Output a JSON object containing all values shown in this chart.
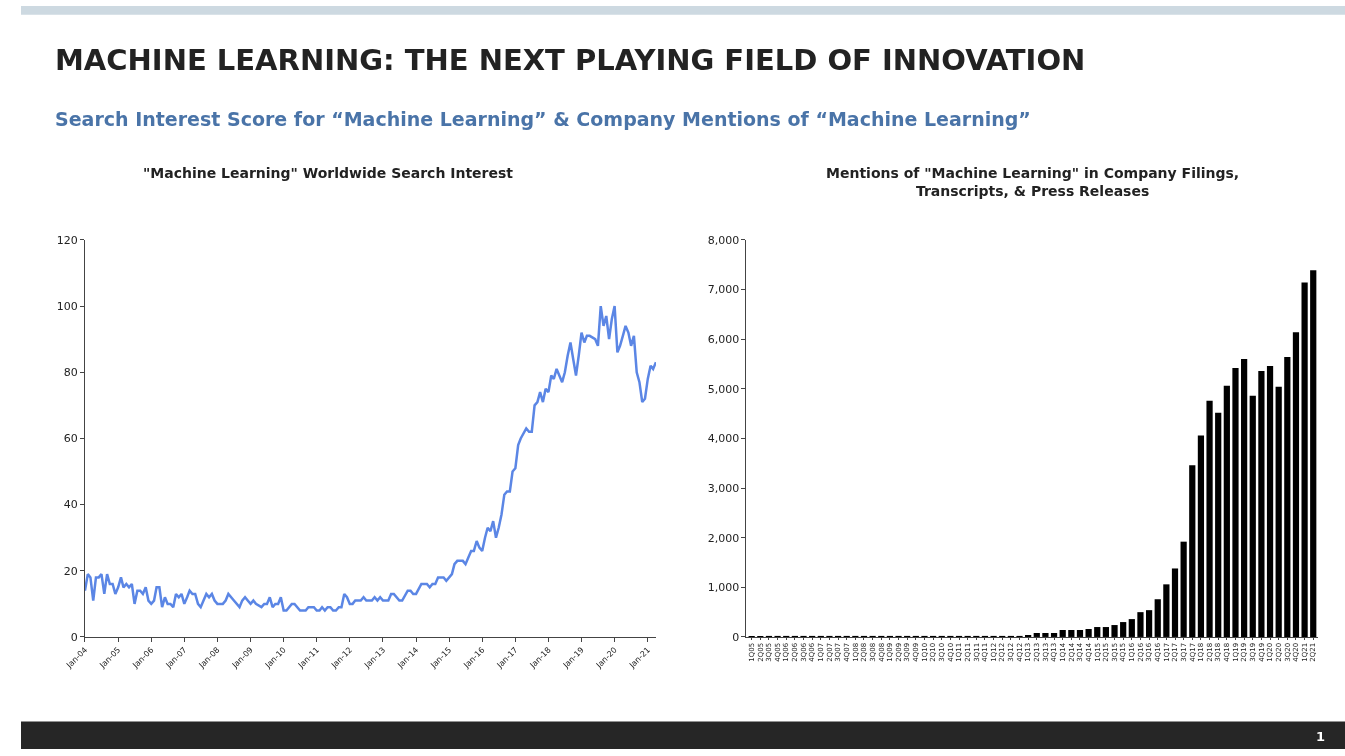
{
  "chart_data": [
    {
      "type": "line",
      "title": "\"Machine Learning\" Worldwide Search Interest",
      "annotations": [
        "MACHINE LEARNING: THE NEXT PLAYING FIELD OF INNOVATION",
        "Search Interest Score for “Machine Learning” & Company Mentions of “Machine Learning”",
        "1"
      ],
      "x": [
        "2004-01",
        "2004-02",
        "2004-03",
        "2004-04",
        "2004-05",
        "2004-06",
        "2004-07",
        "2004-08",
        "2004-09",
        "2004-10",
        "2004-11",
        "2004-12",
        "2005-01",
        "2005-02",
        "2005-03",
        "2005-04",
        "2005-05",
        "2005-06",
        "2005-07",
        "2005-08",
        "2005-09",
        "2005-10",
        "2005-11",
        "2005-12",
        "2006-01",
        "2006-02",
        "2006-03",
        "2006-04",
        "2006-05",
        "2006-06",
        "2006-07",
        "2006-08",
        "2006-09",
        "2006-10",
        "2006-11",
        "2006-12",
        "2007-01",
        "2007-02",
        "2007-03",
        "2007-04",
        "2007-05",
        "2007-06",
        "2007-07",
        "2007-08",
        "2007-09",
        "2007-10",
        "2007-11",
        "2007-12",
        "2008-01",
        "2008-03",
        "2008-04",
        "2008-05",
        "2008-07",
        "2008-09",
        "2008-10",
        "2008-11",
        "2008-12",
        "2009-01",
        "2009-02",
        "2009-03",
        "2009-05",
        "2009-06",
        "2009-07",
        "2009-08",
        "2009-09",
        "2009-10",
        "2009-11",
        "2009-12",
        "2010-01",
        "2010-02",
        "2010-04",
        "2010-05",
        "2010-07",
        "2010-09",
        "2010-10",
        "2010-12",
        "2011-01",
        "2011-02",
        "2011-03",
        "2011-04",
        "2011-05",
        "2011-06",
        "2011-07",
        "2011-08",
        "2011-09",
        "2011-10",
        "2011-11",
        "2011-12",
        "2012-01",
        "2012-02",
        "2012-03",
        "2012-05",
        "2012-06",
        "2012-07",
        "2012-09",
        "2012-10",
        "2012-11",
        "2012-12",
        "2013-01",
        "2013-03",
        "2013-04",
        "2013-05",
        "2013-07",
        "2013-08",
        "2013-10",
        "2013-11",
        "2013-12",
        "2014-01",
        "2014-03",
        "2014-05",
        "2014-06",
        "2014-07",
        "2014-08",
        "2014-09",
        "2014-11",
        "2014-12",
        "2015-02",
        "2015-03",
        "2015-04",
        "2015-06",
        "2015-07",
        "2015-08",
        "2015-09",
        "2015-10",
        "2015-11",
        "2015-12",
        "2016-01",
        "2016-02",
        "2016-03",
        "2016-04",
        "2016-05",
        "2016-06",
        "2016-07",
        "2016-08",
        "2016-09",
        "2016-10",
        "2016-11",
        "2016-12",
        "2017-01",
        "2017-02",
        "2017-03",
        "2017-05",
        "2017-06",
        "2017-07",
        "2017-08",
        "2017-09",
        "2017-10",
        "2017-11",
        "2017-12",
        "2018-01",
        "2018-02",
        "2018-03",
        "2018-04",
        "2018-06",
        "2018-07",
        "2018-08",
        "2018-09",
        "2018-10",
        "2018-11",
        "2018-12",
        "2019-01",
        "2019-02",
        "2019-03",
        "2019-04",
        "2019-06",
        "2019-07",
        "2019-08",
        "2019-09",
        "2019-10",
        "2019-11",
        "2019-12",
        "2020-01",
        "2020-02",
        "2020-03",
        "2020-04",
        "2020-05",
        "2020-06",
        "2020-07",
        "2020-08",
        "2020-09",
        "2020-10",
        "2020-11",
        "2020-12",
        "2021-01",
        "2021-02",
        "2021-03",
        "2021-04"
      ],
      "series": [
        {
          "color": "#5b86e5",
          "values": [
            14,
            19,
            18,
            11,
            18,
            18,
            19,
            13,
            19,
            16,
            16,
            13,
            15,
            18,
            15,
            16,
            15,
            16,
            10,
            14,
            14,
            13,
            15,
            11,
            10,
            11,
            15,
            15,
            9,
            12,
            10,
            10,
            9,
            13,
            12,
            13,
            10,
            12,
            14,
            13,
            13,
            10,
            9,
            11,
            13,
            12,
            13,
            11,
            10,
            10,
            11,
            13,
            11,
            9,
            11,
            12,
            11,
            10,
            11,
            10,
            9,
            10,
            10,
            12,
            9,
            10,
            10,
            12,
            8,
            8,
            10,
            10,
            8,
            8,
            9,
            9,
            8,
            8,
            9,
            8,
            9,
            9,
            8,
            8,
            9,
            9,
            13,
            12,
            10,
            10,
            11,
            11,
            12,
            11,
            11,
            12,
            11,
            12,
            11,
            11,
            13,
            13,
            11,
            11,
            14,
            14,
            13,
            13,
            16,
            16,
            15,
            16,
            16,
            18,
            18,
            17,
            19,
            22,
            23,
            23,
            22,
            24,
            26,
            26,
            29,
            27,
            26,
            30,
            33,
            32,
            35,
            30,
            33,
            37,
            43,
            44,
            44,
            50,
            51,
            58,
            60,
            63,
            62,
            62,
            70,
            71,
            74,
            71,
            75,
            74,
            79,
            78,
            81,
            77,
            80,
            85,
            89,
            84,
            79,
            85,
            92,
            89,
            91,
            91,
            90,
            88,
            100,
            94,
            97,
            90,
            96,
            100,
            86,
            88,
            91,
            94,
            92,
            88,
            91,
            80,
            77,
            71,
            72,
            78,
            82,
            81,
            83
          ]
        }
      ],
      "xlim": [
        "2004-01",
        "2021-04"
      ],
      "xticks": [
        {
          "value": "2004-01",
          "label": "Jan-04"
        },
        {
          "value": "2005-01",
          "label": "Jan-05"
        },
        {
          "value": "2006-01",
          "label": "Jan-06"
        },
        {
          "value": "2007-01",
          "label": "Jan-07"
        },
        {
          "value": "2008-01",
          "label": "Jan-08"
        },
        {
          "value": "2009-01",
          "label": "Jan-09"
        },
        {
          "value": "2010-01",
          "label": "Jan-10"
        },
        {
          "value": "2011-01",
          "label": "Jan-11"
        },
        {
          "value": "2012-01",
          "label": "Jan-12"
        },
        {
          "value": "2013-01",
          "label": "Jan-13"
        },
        {
          "value": "2014-01",
          "label": "Jan-14"
        },
        {
          "value": "2015-01",
          "label": "Jan-15"
        },
        {
          "value": "2016-01",
          "label": "Jan-16"
        },
        {
          "value": "2017-01",
          "label": "Jan-17"
        },
        {
          "value": "2018-01",
          "label": "Jan-18"
        },
        {
          "value": "2019-01",
          "label": "Jan-19"
        },
        {
          "value": "2020-01",
          "label": "Jan-20"
        },
        {
          "value": "2021-01",
          "label": "Jan-21"
        }
      ],
      "ylim": [
        0,
        120
      ],
      "yticks": [
        0,
        20,
        40,
        60,
        80,
        100,
        120
      ],
      "marker": "none",
      "line_style": "solid"
    },
    {
      "type": "bar",
      "title": "Mentions of \"Machine Learning\" in Company Filings,\nTranscripts, & Press Releases",
      "categories": [
        "1Q05",
        "2Q05",
        "3Q05",
        "4Q05",
        "1Q06",
        "2Q06",
        "3Q06",
        "4Q06",
        "1Q07",
        "2Q07",
        "3Q07",
        "4Q07",
        "1Q08",
        "2Q08",
        "3Q08",
        "4Q08",
        "1Q09",
        "2Q09",
        "3Q09",
        "4Q09",
        "1Q10",
        "2Q10",
        "3Q10",
        "4Q10",
        "1Q11",
        "2Q11",
        "3Q11",
        "4Q11",
        "1Q12",
        "2Q12",
        "3Q12",
        "4Q12",
        "1Q13",
        "2Q13",
        "3Q13",
        "4Q13",
        "1Q14",
        "2Q14",
        "3Q14",
        "4Q14",
        "1Q15",
        "2Q15",
        "3Q15",
        "4Q15",
        "1Q16",
        "2Q16",
        "3Q16",
        "4Q16",
        "1Q17",
        "2Q17",
        "3Q17",
        "4Q17",
        "1Q18",
        "2Q18",
        "3Q18",
        "4Q18",
        "1Q19",
        "2Q19",
        "3Q19",
        "4Q19",
        "1Q20",
        "2Q20",
        "3Q20",
        "4Q20",
        "1Q21",
        "2Q21"
      ],
      "series": [
        {
          "color": "#000000",
          "values": [
            20,
            20,
            20,
            20,
            20,
            20,
            20,
            20,
            20,
            20,
            20,
            20,
            20,
            20,
            20,
            20,
            20,
            20,
            20,
            20,
            20,
            20,
            20,
            20,
            20,
            20,
            20,
            20,
            20,
            20,
            20,
            20,
            40,
            80,
            80,
            80,
            140,
            140,
            140,
            160,
            200,
            200,
            240,
            300,
            360,
            500,
            540,
            760,
            1060,
            1380,
            1920,
            3460,
            4060,
            4760,
            4520,
            5060,
            5420,
            5600,
            4860,
            5360,
            5460,
            5040,
            5640,
            6140,
            7140,
            7390
          ]
        }
      ],
      "ylim": [
        0,
        8000
      ],
      "yticks": [
        0,
        {
          "value": 1000,
          "label": "1,000"
        },
        {
          "value": 2000,
          "label": "2,000"
        },
        {
          "value": 3000,
          "label": "3,000"
        },
        {
          "value": 4000,
          "label": "4,000"
        },
        {
          "value": 5000,
          "label": "5,000"
        },
        {
          "value": 6000,
          "label": "6,000"
        },
        {
          "value": 7000,
          "label": "7,000"
        },
        {
          "value": 8000,
          "label": "8,000"
        }
      ],
      "marker": "none"
    }
  ]
}
